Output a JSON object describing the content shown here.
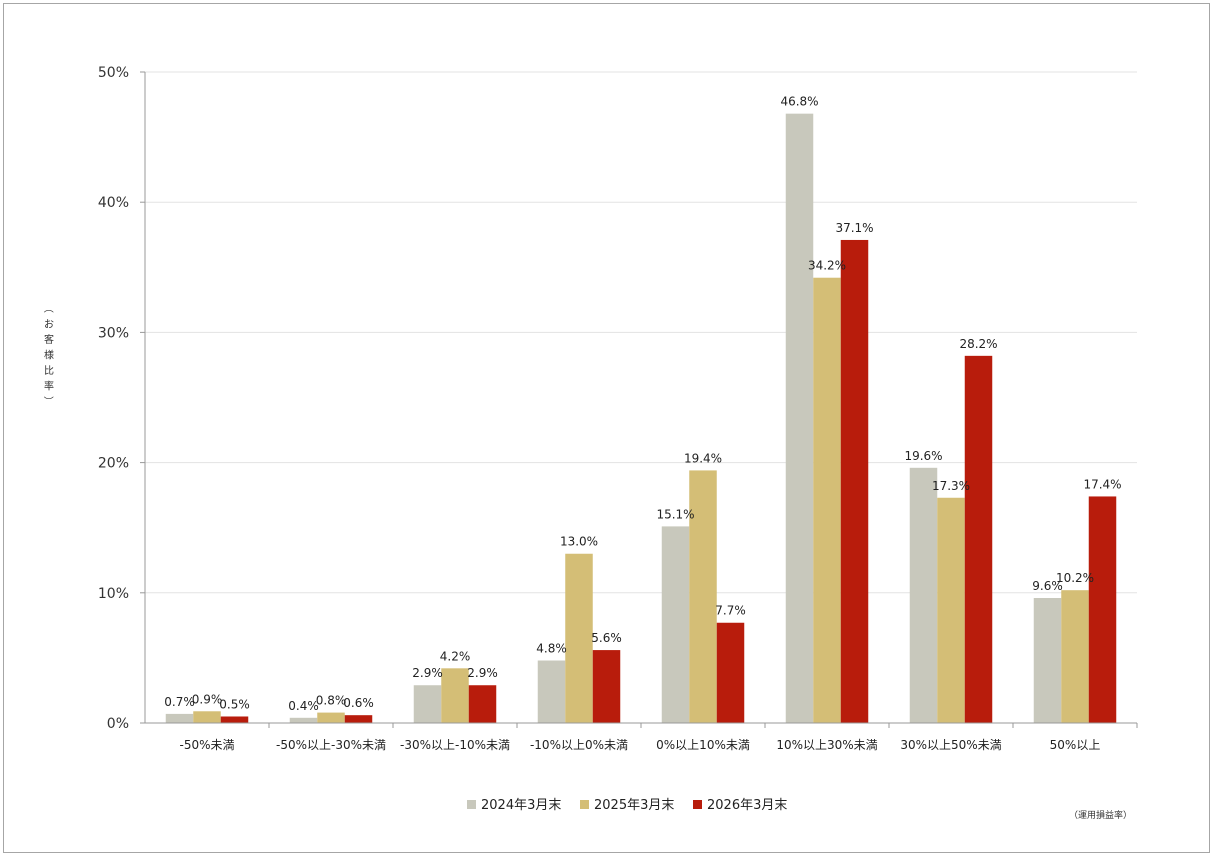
{
  "chart_data": {
    "type": "bar",
    "ylabel": "（お客様比率）",
    "ylim": [
      0,
      50
    ],
    "yticks": [
      "0%",
      "10%",
      "20%",
      "30%",
      "40%",
      "50%"
    ],
    "grid": true,
    "legend_position": "bottom-center",
    "note": "（運用損益率）",
    "categories": [
      "-50%未満",
      "-50%以上-30%未満",
      "-30%以上-10%未満",
      "-10%以上0%未満",
      "0%以上10%未満",
      "10%以上30%未満",
      "30%以上50%未満",
      "50%以上"
    ],
    "series": [
      {
        "name": "2024年3月末",
        "color": "#c8c8bc",
        "values": [
          0.7,
          0.4,
          2.9,
          4.8,
          15.1,
          46.8,
          19.6,
          9.6
        ],
        "labels": [
          "0.7%",
          "0.4%",
          "2.9%",
          "4.8%",
          "15.1%",
          "46.8%",
          "19.6%",
          "9.6%"
        ]
      },
      {
        "name": "2025年3月末",
        "color": "#d4be76",
        "values": [
          0.9,
          0.8,
          4.2,
          13.0,
          19.4,
          34.2,
          17.3,
          10.2
        ],
        "labels": [
          "0.9%",
          "0.8%",
          "4.2%",
          "13.0%",
          "19.4%",
          "34.2%",
          "17.3%",
          "10.2%"
        ]
      },
      {
        "name": "2026年3月末",
        "color": "#b81c0c",
        "values": [
          0.5,
          0.6,
          2.9,
          5.6,
          7.7,
          37.1,
          28.2,
          17.4
        ],
        "labels": [
          "0.5%",
          "0.6%",
          "2.9%",
          "5.6%",
          "7.7%",
          "37.1%",
          "28.2%",
          "17.4%"
        ]
      }
    ]
  }
}
